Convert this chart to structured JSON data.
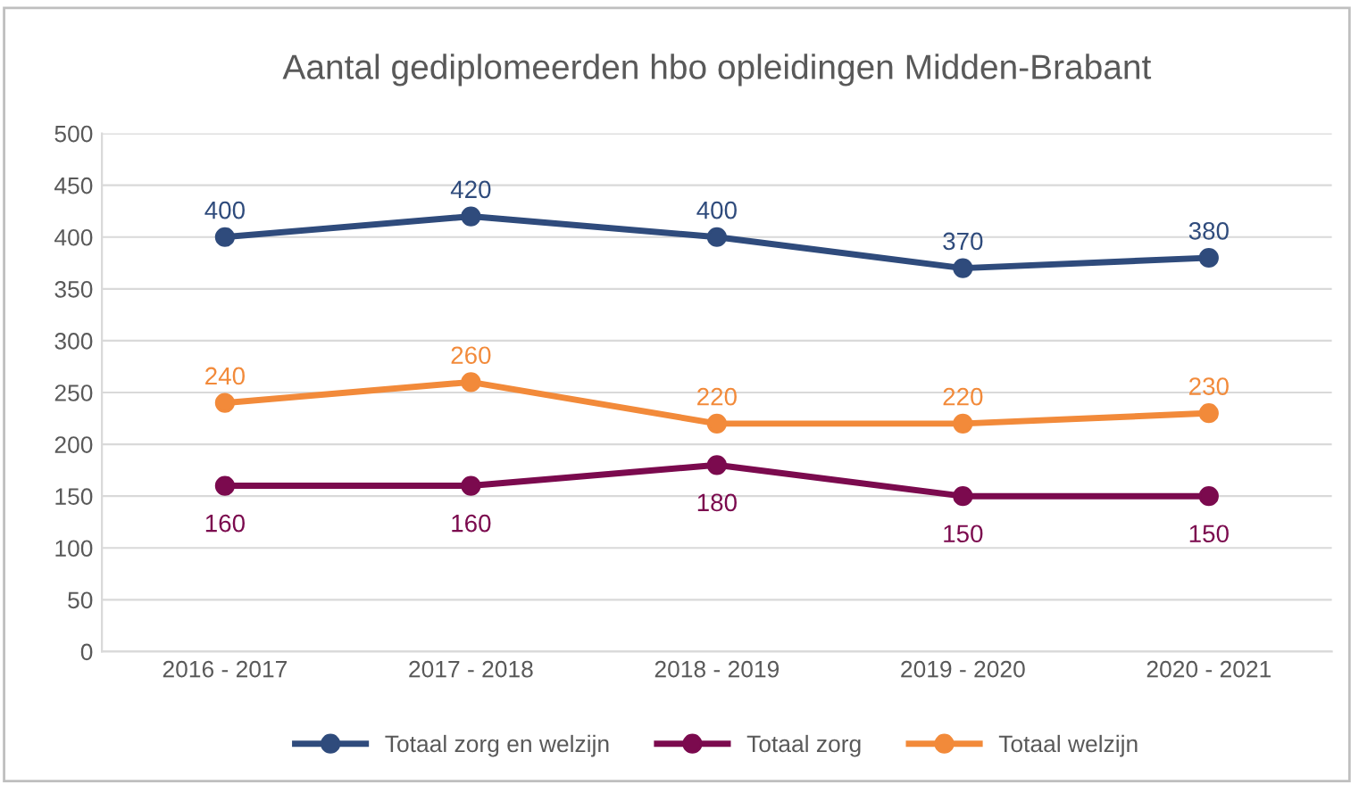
{
  "chart_data": {
    "type": "line",
    "title": "Aantal gediplomeerden hbo opleidingen Midden-Brabant",
    "categories": [
      "2016 - 2017",
      "2017 - 2018",
      "2018 - 2019",
      "2019 - 2020",
      "2020 - 2021"
    ],
    "series": [
      {
        "name": "Totaal zorg en welzijn",
        "color": "#2f4b7c",
        "values": [
          400,
          420,
          400,
          370,
          380
        ]
      },
      {
        "name": "Totaal zorg",
        "color": "#7b0a4e",
        "values": [
          160,
          160,
          180,
          150,
          150
        ]
      },
      {
        "name": "Totaal welzijn",
        "color": "#f28a3a",
        "values": [
          240,
          260,
          220,
          220,
          230
        ]
      }
    ],
    "ylim": [
      0,
      500
    ],
    "yticks": [
      0,
      50,
      100,
      150,
      200,
      250,
      300,
      350,
      400,
      450,
      500
    ],
    "grid": "y",
    "legend": "bottom",
    "marker": "circle",
    "line_style": "solid",
    "data_labels": true
  }
}
